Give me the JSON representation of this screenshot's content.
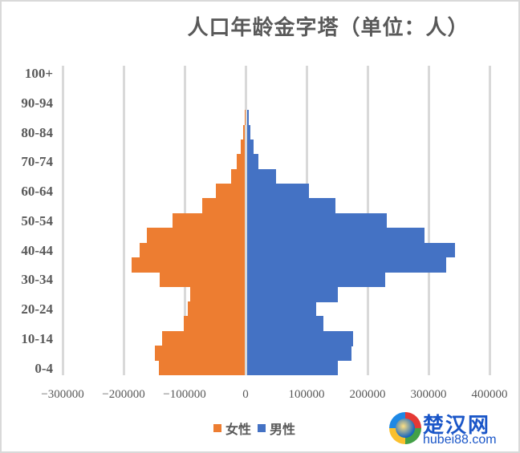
{
  "chart_data": {
    "type": "bar",
    "orientation": "horizontal",
    "title": "人口年龄金字塔（单位：人）",
    "xlabel": "",
    "ylabel": "",
    "xlim": [
      -300000,
      400000
    ],
    "x_ticks": [
      "-300000",
      "-200000",
      "-100000",
      "0",
      "100000",
      "200000",
      "300000",
      "400000"
    ],
    "y_tick_labels": [
      "0-4",
      "10-14",
      "20-24",
      "30-34",
      "40-44",
      "50-54",
      "60-64",
      "70-74",
      "80-84",
      "90-94",
      "100+"
    ],
    "grid": true,
    "legend_position": "bottom",
    "categories": [
      "0-4",
      "5-9",
      "10-14",
      "15-19",
      "20-24",
      "25-29",
      "30-34",
      "35-39",
      "40-44",
      "45-49",
      "50-54",
      "55-59",
      "60-64",
      "65-69",
      "70-74",
      "75-79",
      "80-84",
      "85-89",
      "90-94",
      "95-99",
      "100+"
    ],
    "series": [
      {
        "name": "女性",
        "color": "#ED7D31",
        "values": [
          -141000,
          -147000,
          -136000,
          -100000,
          -93000,
          -89000,
          -140000,
          -185000,
          -173000,
          -160000,
          -118000,
          -70000,
          -48000,
          -22000,
          -13000,
          -6000,
          -2500,
          -500,
          0,
          0,
          0
        ]
      },
      {
        "name": "男性",
        "color": "#4472C4",
        "values": [
          149000,
          171000,
          174000,
          125000,
          113000,
          149000,
          226000,
          326000,
          341000,
          291000,
          229000,
          145000,
          101000,
          48000,
          18000,
          10000,
          5000,
          2500,
          0,
          0,
          0
        ]
      }
    ]
  },
  "title": "人口年龄金字塔（单位：人）",
  "legend": [
    {
      "label": "女性",
      "color": "#ED7D31"
    },
    {
      "label": "男性",
      "color": "#4472C4"
    }
  ],
  "watermark": {
    "name": "楚汉网",
    "domain": "hubei88.com"
  }
}
